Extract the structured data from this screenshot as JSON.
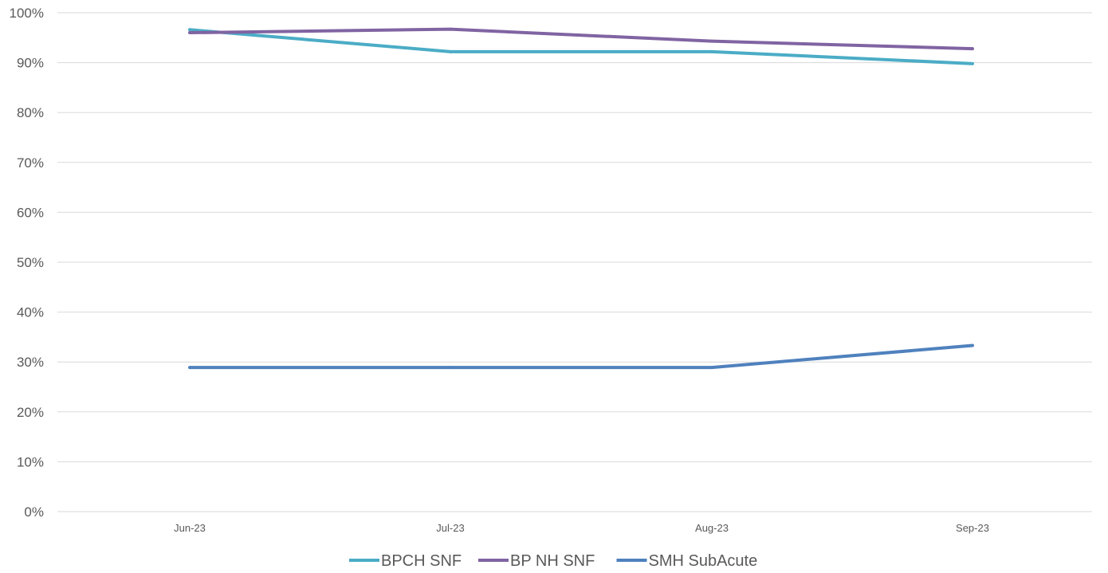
{
  "chart_data": {
    "type": "line",
    "title": "",
    "xlabel": "",
    "ylabel": "",
    "categories": [
      "Jun-23",
      "Jul-23",
      "Aug-23",
      "Sep-23"
    ],
    "ylim": [
      0,
      100
    ],
    "y_ticks": [
      0,
      10,
      20,
      30,
      40,
      50,
      60,
      70,
      80,
      90,
      100
    ],
    "y_tick_labels": [
      "0%",
      "10%",
      "20%",
      "30%",
      "40%",
      "50%",
      "60%",
      "70%",
      "80%",
      "90%",
      "100%"
    ],
    "grid": true,
    "legend_position": "bottom",
    "series": [
      {
        "name": "BPCH SNF",
        "color": "#4bacc6",
        "values": [
          96.6,
          92.2,
          92.2,
          89.8
        ]
      },
      {
        "name": "BP NH SNF",
        "color": "#8064a2",
        "values": [
          96.0,
          96.7,
          94.3,
          92.8
        ]
      },
      {
        "name": "SMH SubAcute",
        "color": "#4f81bd",
        "values": [
          28.9,
          28.9,
          28.9,
          33.3
        ]
      }
    ]
  }
}
